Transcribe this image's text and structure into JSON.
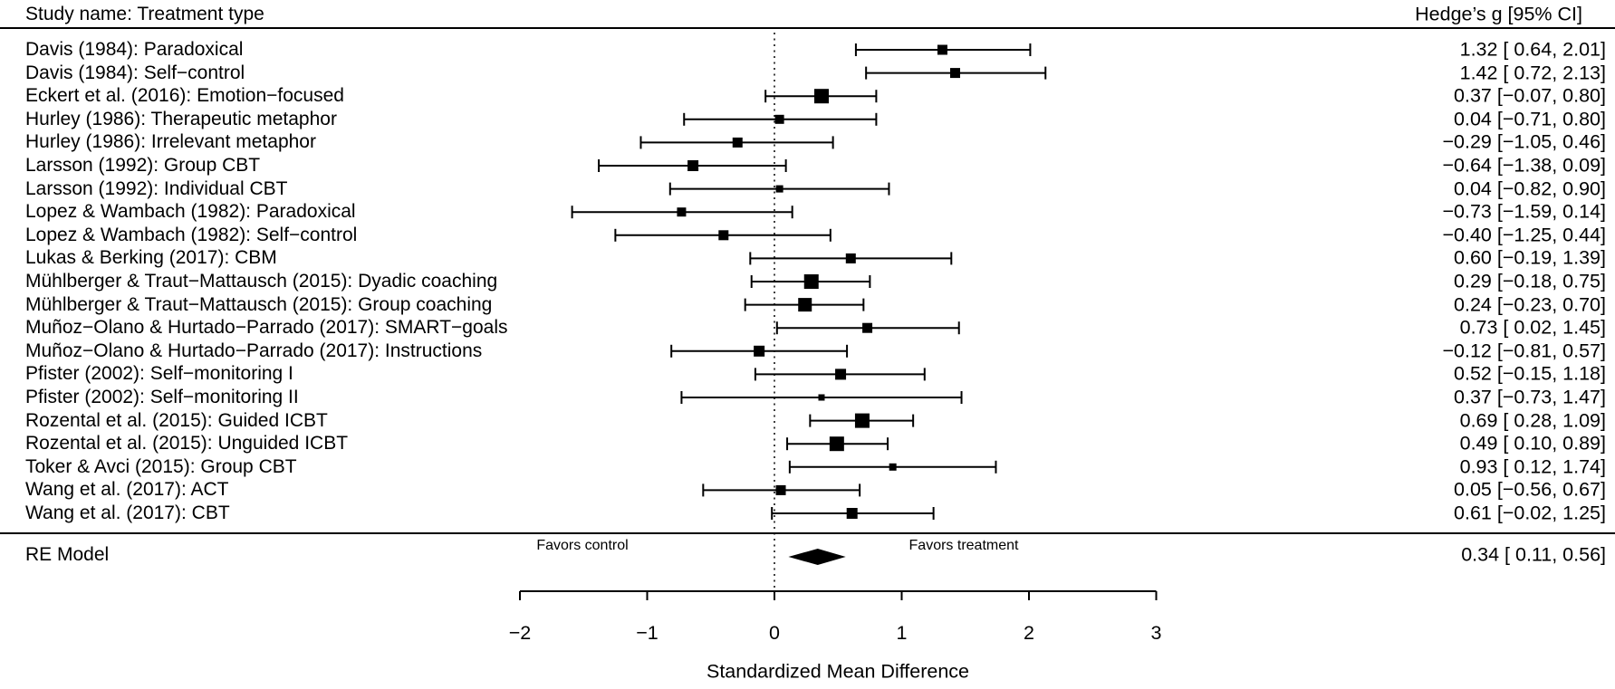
{
  "page": {
    "header_left": "Study name: Treatment type",
    "header_right": "Hedge’s g [95% CI]"
  },
  "chart_data": {
    "type": "forest",
    "effect_measure": "Hedge's g",
    "xlabel": "Standardized Mean Difference",
    "xlim": [
      -2,
      3
    ],
    "x_ticks": [
      -2,
      -1,
      0,
      1,
      2,
      3
    ],
    "zero_reference_line": 0,
    "annotations": {
      "favors_control": "Favors control",
      "favors_treatment": "Favors treatment"
    },
    "studies": [
      {
        "label": "Davis (1984): Paradoxical",
        "g": 1.32,
        "lo": 0.64,
        "hi": 2.01,
        "text": "1.32 [ 0.64, 2.01]",
        "size": 11
      },
      {
        "label": "Davis (1984): Self−control",
        "g": 1.42,
        "lo": 0.72,
        "hi": 2.13,
        "text": "1.42 [ 0.72, 2.13]",
        "size": 11
      },
      {
        "label": "Eckert et al. (2016): Emotion−focused",
        "g": 0.37,
        "lo": -0.07,
        "hi": 0.8,
        "text": "0.37 [−0.07, 0.80]",
        "size": 16
      },
      {
        "label": "Hurley (1986): Therapeutic metaphor",
        "g": 0.04,
        "lo": -0.71,
        "hi": 0.8,
        "text": "0.04 [−0.71, 0.80]",
        "size": 10
      },
      {
        "label": "Hurley (1986): Irrelevant metaphor",
        "g": -0.29,
        "lo": -1.05,
        "hi": 0.46,
        "text": "−0.29 [−1.05, 0.46]",
        "size": 11
      },
      {
        "label": "Larsson (1992): Group CBT",
        "g": -0.64,
        "lo": -1.38,
        "hi": 0.09,
        "text": "−0.64 [−1.38, 0.09]",
        "size": 12
      },
      {
        "label": "Larsson (1992): Individual CBT",
        "g": 0.04,
        "lo": -0.82,
        "hi": 0.9,
        "text": "0.04 [−0.82, 0.90]",
        "size": 8
      },
      {
        "label": "Lopez & Wambach (1982): Paradoxical",
        "g": -0.73,
        "lo": -1.59,
        "hi": 0.14,
        "text": "−0.73 [−1.59, 0.14]",
        "size": 10
      },
      {
        "label": "Lopez & Wambach (1982): Self−control",
        "g": -0.4,
        "lo": -1.25,
        "hi": 0.44,
        "text": "−0.40 [−1.25, 0.44]",
        "size": 11
      },
      {
        "label": "Lukas & Berking (2017): CBM",
        "g": 0.6,
        "lo": -0.19,
        "hi": 1.39,
        "text": "0.60 [−0.19, 1.39]",
        "size": 11
      },
      {
        "label": "Mühlberger & Traut−Mattausch (2015): Dyadic coaching",
        "g": 0.29,
        "lo": -0.18,
        "hi": 0.75,
        "text": "0.29 [−0.18, 0.75]",
        "size": 16
      },
      {
        "label": "Mühlberger & Traut−Mattausch (2015): Group coaching",
        "g": 0.24,
        "lo": -0.23,
        "hi": 0.7,
        "text": "0.24 [−0.23, 0.70]",
        "size": 15
      },
      {
        "label": "Muñoz−Olano & Hurtado−Parrado (2017): SMART−goals",
        "g": 0.73,
        "lo": 0.02,
        "hi": 1.45,
        "text": "0.73 [ 0.02, 1.45]",
        "size": 11
      },
      {
        "label": "Muñoz−Olano & Hurtado−Parrado (2017): Instructions",
        "g": -0.12,
        "lo": -0.81,
        "hi": 0.57,
        "text": "−0.12 [−0.81, 0.57]",
        "size": 12
      },
      {
        "label": "Pfister (2002): Self−monitoring I",
        "g": 0.52,
        "lo": -0.15,
        "hi": 1.18,
        "text": "0.52 [−0.15, 1.18]",
        "size": 12
      },
      {
        "label": "Pfister (2002): Self−monitoring II",
        "g": 0.37,
        "lo": -0.73,
        "hi": 1.47,
        "text": "0.37 [−0.73, 1.47]",
        "size": 7
      },
      {
        "label": "Rozental et al. (2015): Guided ICBT",
        "g": 0.69,
        "lo": 0.28,
        "hi": 1.09,
        "text": "0.69 [ 0.28, 1.09]",
        "size": 16
      },
      {
        "label": "Rozental et al. (2015): Unguided ICBT",
        "g": 0.49,
        "lo": 0.1,
        "hi": 0.89,
        "text": "0.49 [ 0.10, 0.89]",
        "size": 16
      },
      {
        "label": "Toker & Avci (2015): Group CBT",
        "g": 0.93,
        "lo": 0.12,
        "hi": 1.74,
        "text": "0.93 [ 0.12, 1.74]",
        "size": 8
      },
      {
        "label": "Wang et al. (2017): ACT",
        "g": 0.05,
        "lo": -0.56,
        "hi": 0.67,
        "text": "0.05 [−0.56, 0.67]",
        "size": 11
      },
      {
        "label": "Wang et al. (2017): CBT",
        "g": 0.61,
        "lo": -0.02,
        "hi": 1.25,
        "text": "0.61 [−0.02, 1.25]",
        "size": 12
      }
    ],
    "summary": {
      "label": "RE Model",
      "g": 0.34,
      "lo": 0.11,
      "hi": 0.56,
      "text": "0.34 [ 0.11, 0.56]"
    }
  }
}
